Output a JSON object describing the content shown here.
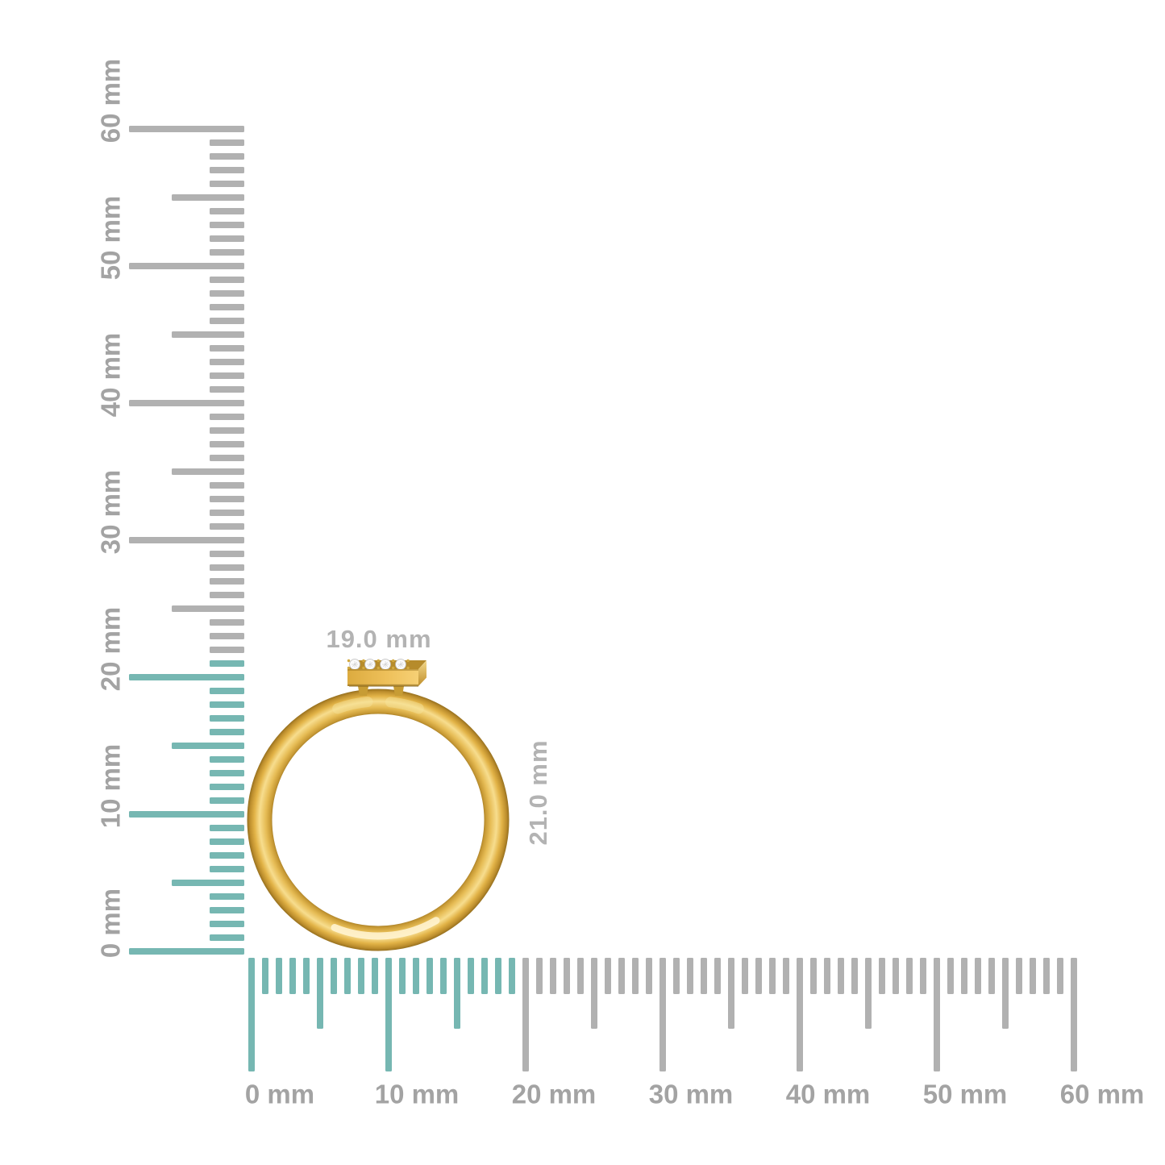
{
  "page": {
    "background": "#ffffff",
    "description": "Yellow gold ring side profile with diamond-set bar, shown against millimeter rulers"
  },
  "colors": {
    "tick_highlight": "#76b7b2",
    "tick_gray": "#b1b1b1",
    "ruler_label": "#a3a3a3",
    "dimension_label": "#b3b3b3",
    "gold_edge_dark": "#9e7723",
    "gold_mid": "#e2b347",
    "gold_bright": "#f7dd8e",
    "diamond": "#fbfbfb"
  },
  "vertical_ruler": {
    "unit": "mm",
    "min_mm": 0,
    "max_mm": 60,
    "minor_step_mm": 1,
    "medium_step_mm": 5,
    "major_step_mm": 10,
    "highlight_through_mm": 21,
    "major_labels": [
      "0 mm",
      "10 mm",
      "20 mm",
      "30 mm",
      "40 mm",
      "50 mm",
      "60 mm"
    ]
  },
  "horizontal_ruler": {
    "unit": "mm",
    "min_mm": 0,
    "max_mm": 60,
    "minor_step_mm": 1,
    "medium_step_mm": 5,
    "major_step_mm": 10,
    "highlight_through_mm": 19,
    "major_labels": [
      "0 mm",
      "10 mm",
      "20 mm",
      "30 mm",
      "40 mm",
      "50 mm",
      "60 mm"
    ]
  },
  "dimensions": {
    "width_label": "19.0 mm",
    "height_label": "21.0 mm"
  },
  "ring": {
    "type": "ring-side-profile",
    "band_color": "yellow gold",
    "feature": "rectangular bar set with round diamonds",
    "diamond_count": 4
  }
}
